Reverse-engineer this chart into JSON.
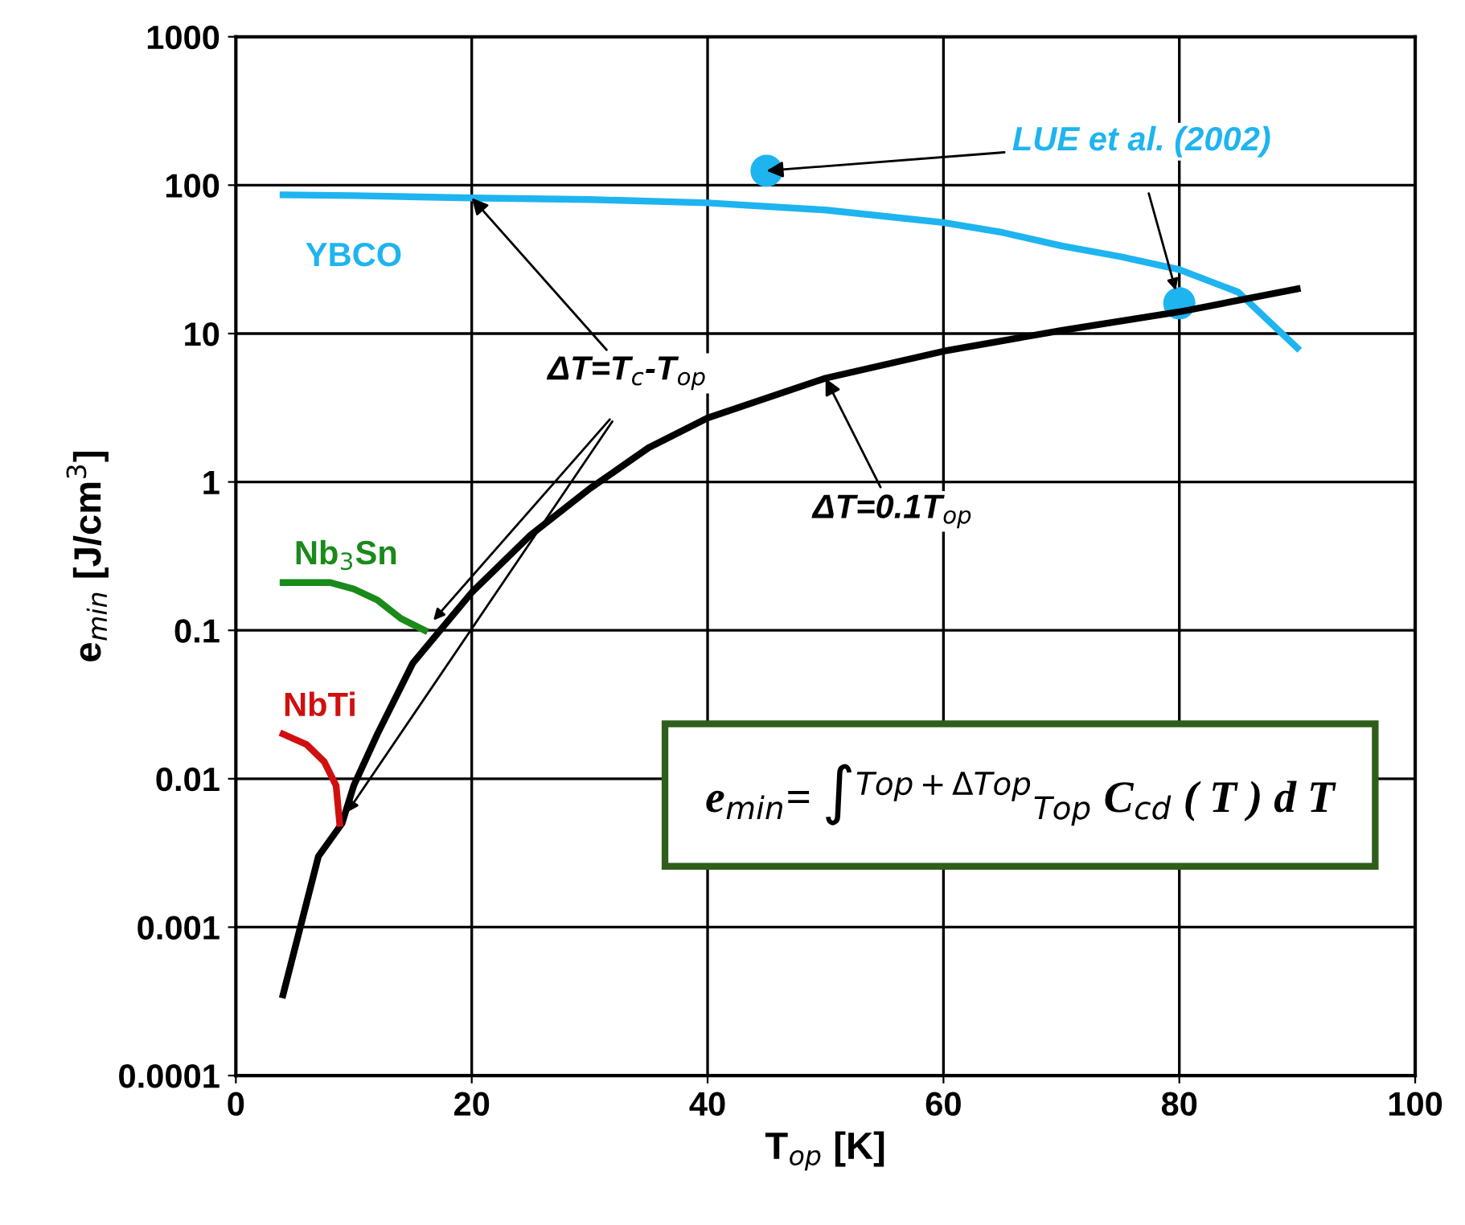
{
  "chart_data": {
    "type": "line",
    "xlabel": "T$_{op}$ [K]",
    "ylabel": "e$_{min}$ [J/cm$^{3}$]",
    "log": "y",
    "grid": true,
    "legend": false,
    "marker": "none",
    "line_style": "solid",
    "xlim": [
      0,
      100
    ],
    "xticks": [
      0,
      20,
      40,
      60,
      80,
      100
    ],
    "ylim": [
      0.0001,
      1000
    ],
    "yticks": [
      0.0001,
      0.001,
      0.01,
      0.1,
      1,
      10,
      100,
      1000
    ],
    "series": [
      {
        "name": "YBCO",
        "color": "#1eb4f0",
        "x": [
          4,
          10,
          20,
          30,
          40,
          50,
          60,
          65,
          70,
          75,
          80,
          85,
          90
        ],
        "values": [
          86,
          85,
          82,
          80,
          76,
          68,
          56,
          48,
          39,
          33,
          27,
          19,
          8
        ]
      },
      {
        "color": "#000000",
        "x": [
          4,
          7,
          9,
          10,
          12,
          15,
          20,
          25,
          30,
          35,
          40,
          50,
          60,
          70,
          80,
          90
        ],
        "values": [
          0.00035,
          0.003,
          0.005,
          0.009,
          0.02,
          0.06,
          0.18,
          0.44,
          0.9,
          1.7,
          2.7,
          5,
          7.6,
          10.5,
          14,
          20
        ]
      },
      {
        "name": "Nb$_{3}$Sn",
        "color": "#1a8a1a",
        "x": [
          4,
          8,
          10,
          12,
          14,
          16
        ],
        "values": [
          0.21,
          0.21,
          0.19,
          0.16,
          0.12,
          0.1
        ]
      },
      {
        "name": "NbTi",
        "color": "#d01010",
        "x": [
          4,
          6,
          7.5,
          8.5,
          8.8
        ],
        "values": [
          0.02,
          0.017,
          0.013,
          0.009,
          0.005
        ]
      },
      {
        "type": "scatter",
        "marker": "circle",
        "color": "#1eb4f0",
        "x": [
          45,
          80
        ],
        "values": [
          125,
          16
        ]
      }
    ],
    "annotations": [
      {
        "text": "LUE et al. (2002)",
        "x": 45,
        "y": 125
      },
      {
        "text": "ΔT=T$_{c}$-T$_{op}$",
        "x": 20,
        "y": 82
      },
      {
        "text": "ΔT=0.1T$_{op}$",
        "x": 50,
        "y": 5
      },
      "e$_{min}$= ∫$^{Top+ΔTop}$$_{Top}$ C$_{cd}$ ( T ) d T"
    ]
  }
}
